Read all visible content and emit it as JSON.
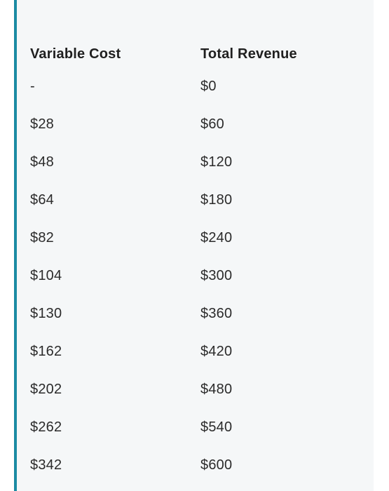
{
  "table": {
    "headers": [
      "Variable Cost",
      "Total Revenue"
    ],
    "rows": [
      [
        "-",
        "$0"
      ],
      [
        "$28",
        "$60"
      ],
      [
        "$48",
        "$120"
      ],
      [
        "$64",
        "$180"
      ],
      [
        "$82",
        "$240"
      ],
      [
        "$104",
        "$300"
      ],
      [
        "$130",
        "$360"
      ],
      [
        "$162",
        "$420"
      ],
      [
        "$202",
        "$480"
      ],
      [
        "$262",
        "$540"
      ],
      [
        "$342",
        "$600"
      ]
    ]
  },
  "colors": {
    "accent_border": "#1b8ba3",
    "panel_background": "#f5f7f8"
  }
}
